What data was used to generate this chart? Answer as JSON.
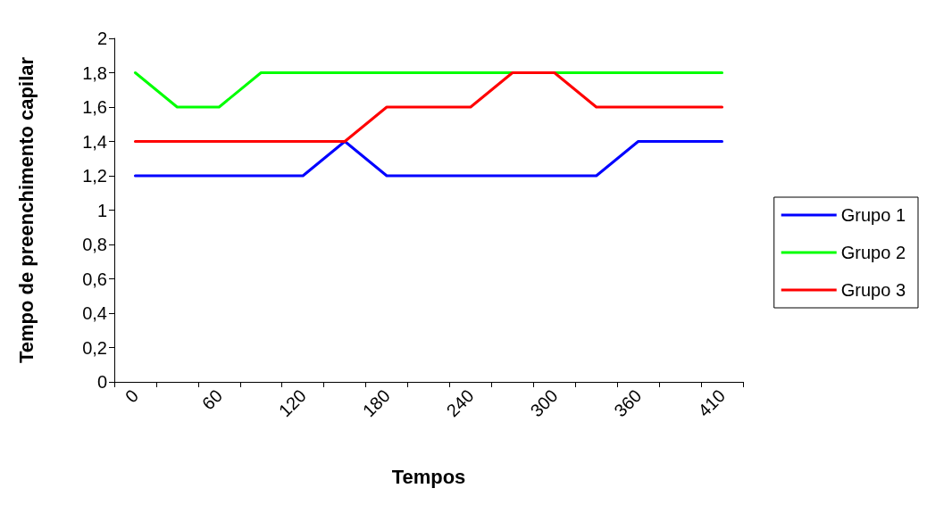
{
  "chart_data": {
    "type": "line",
    "xlabel": "Tempos",
    "ylabel": "Tempo de preenchimento capilar",
    "categories": [
      "0",
      null,
      "60",
      null,
      "120",
      null,
      "180",
      null,
      "240",
      null,
      "300",
      null,
      "360",
      null,
      "410"
    ],
    "series": [
      {
        "name": "Grupo 1",
        "color": "#0000ff",
        "values": [
          1.2,
          1.2,
          1.2,
          1.2,
          1.2,
          1.4,
          1.2,
          1.2,
          1.2,
          1.2,
          1.2,
          1.2,
          1.4,
          1.4,
          1.4
        ]
      },
      {
        "name": "Grupo 2",
        "color": "#00ff00",
        "values": [
          1.8,
          1.6,
          1.6,
          1.8,
          1.8,
          1.8,
          1.8,
          1.8,
          1.8,
          1.8,
          1.8,
          1.8,
          1.8,
          1.8,
          1.8
        ]
      },
      {
        "name": "Grupo 3",
        "color": "#ff0000",
        "values": [
          1.4,
          1.4,
          1.4,
          1.4,
          1.4,
          1.4,
          1.6,
          1.6,
          1.6,
          1.8,
          1.8,
          1.6,
          1.6,
          1.6,
          1.6
        ]
      }
    ],
    "ylim": [
      0,
      2
    ],
    "yticks": [
      0,
      {
        "value": 0.2,
        "label": "0,2"
      },
      {
        "value": 0.4,
        "label": "0,4"
      },
      {
        "value": 0.6,
        "label": "0,6"
      },
      {
        "value": 0.8,
        "label": "0,8"
      },
      1,
      {
        "value": 1.2,
        "label": "1,2"
      },
      {
        "value": 1.4,
        "label": "1,4"
      },
      {
        "value": 1.6,
        "label": "1,6"
      },
      {
        "value": 1.8,
        "label": "1,8"
      },
      2
    ],
    "grid": false,
    "legend": "right",
    "marker": "none",
    "line_style": "solid"
  }
}
